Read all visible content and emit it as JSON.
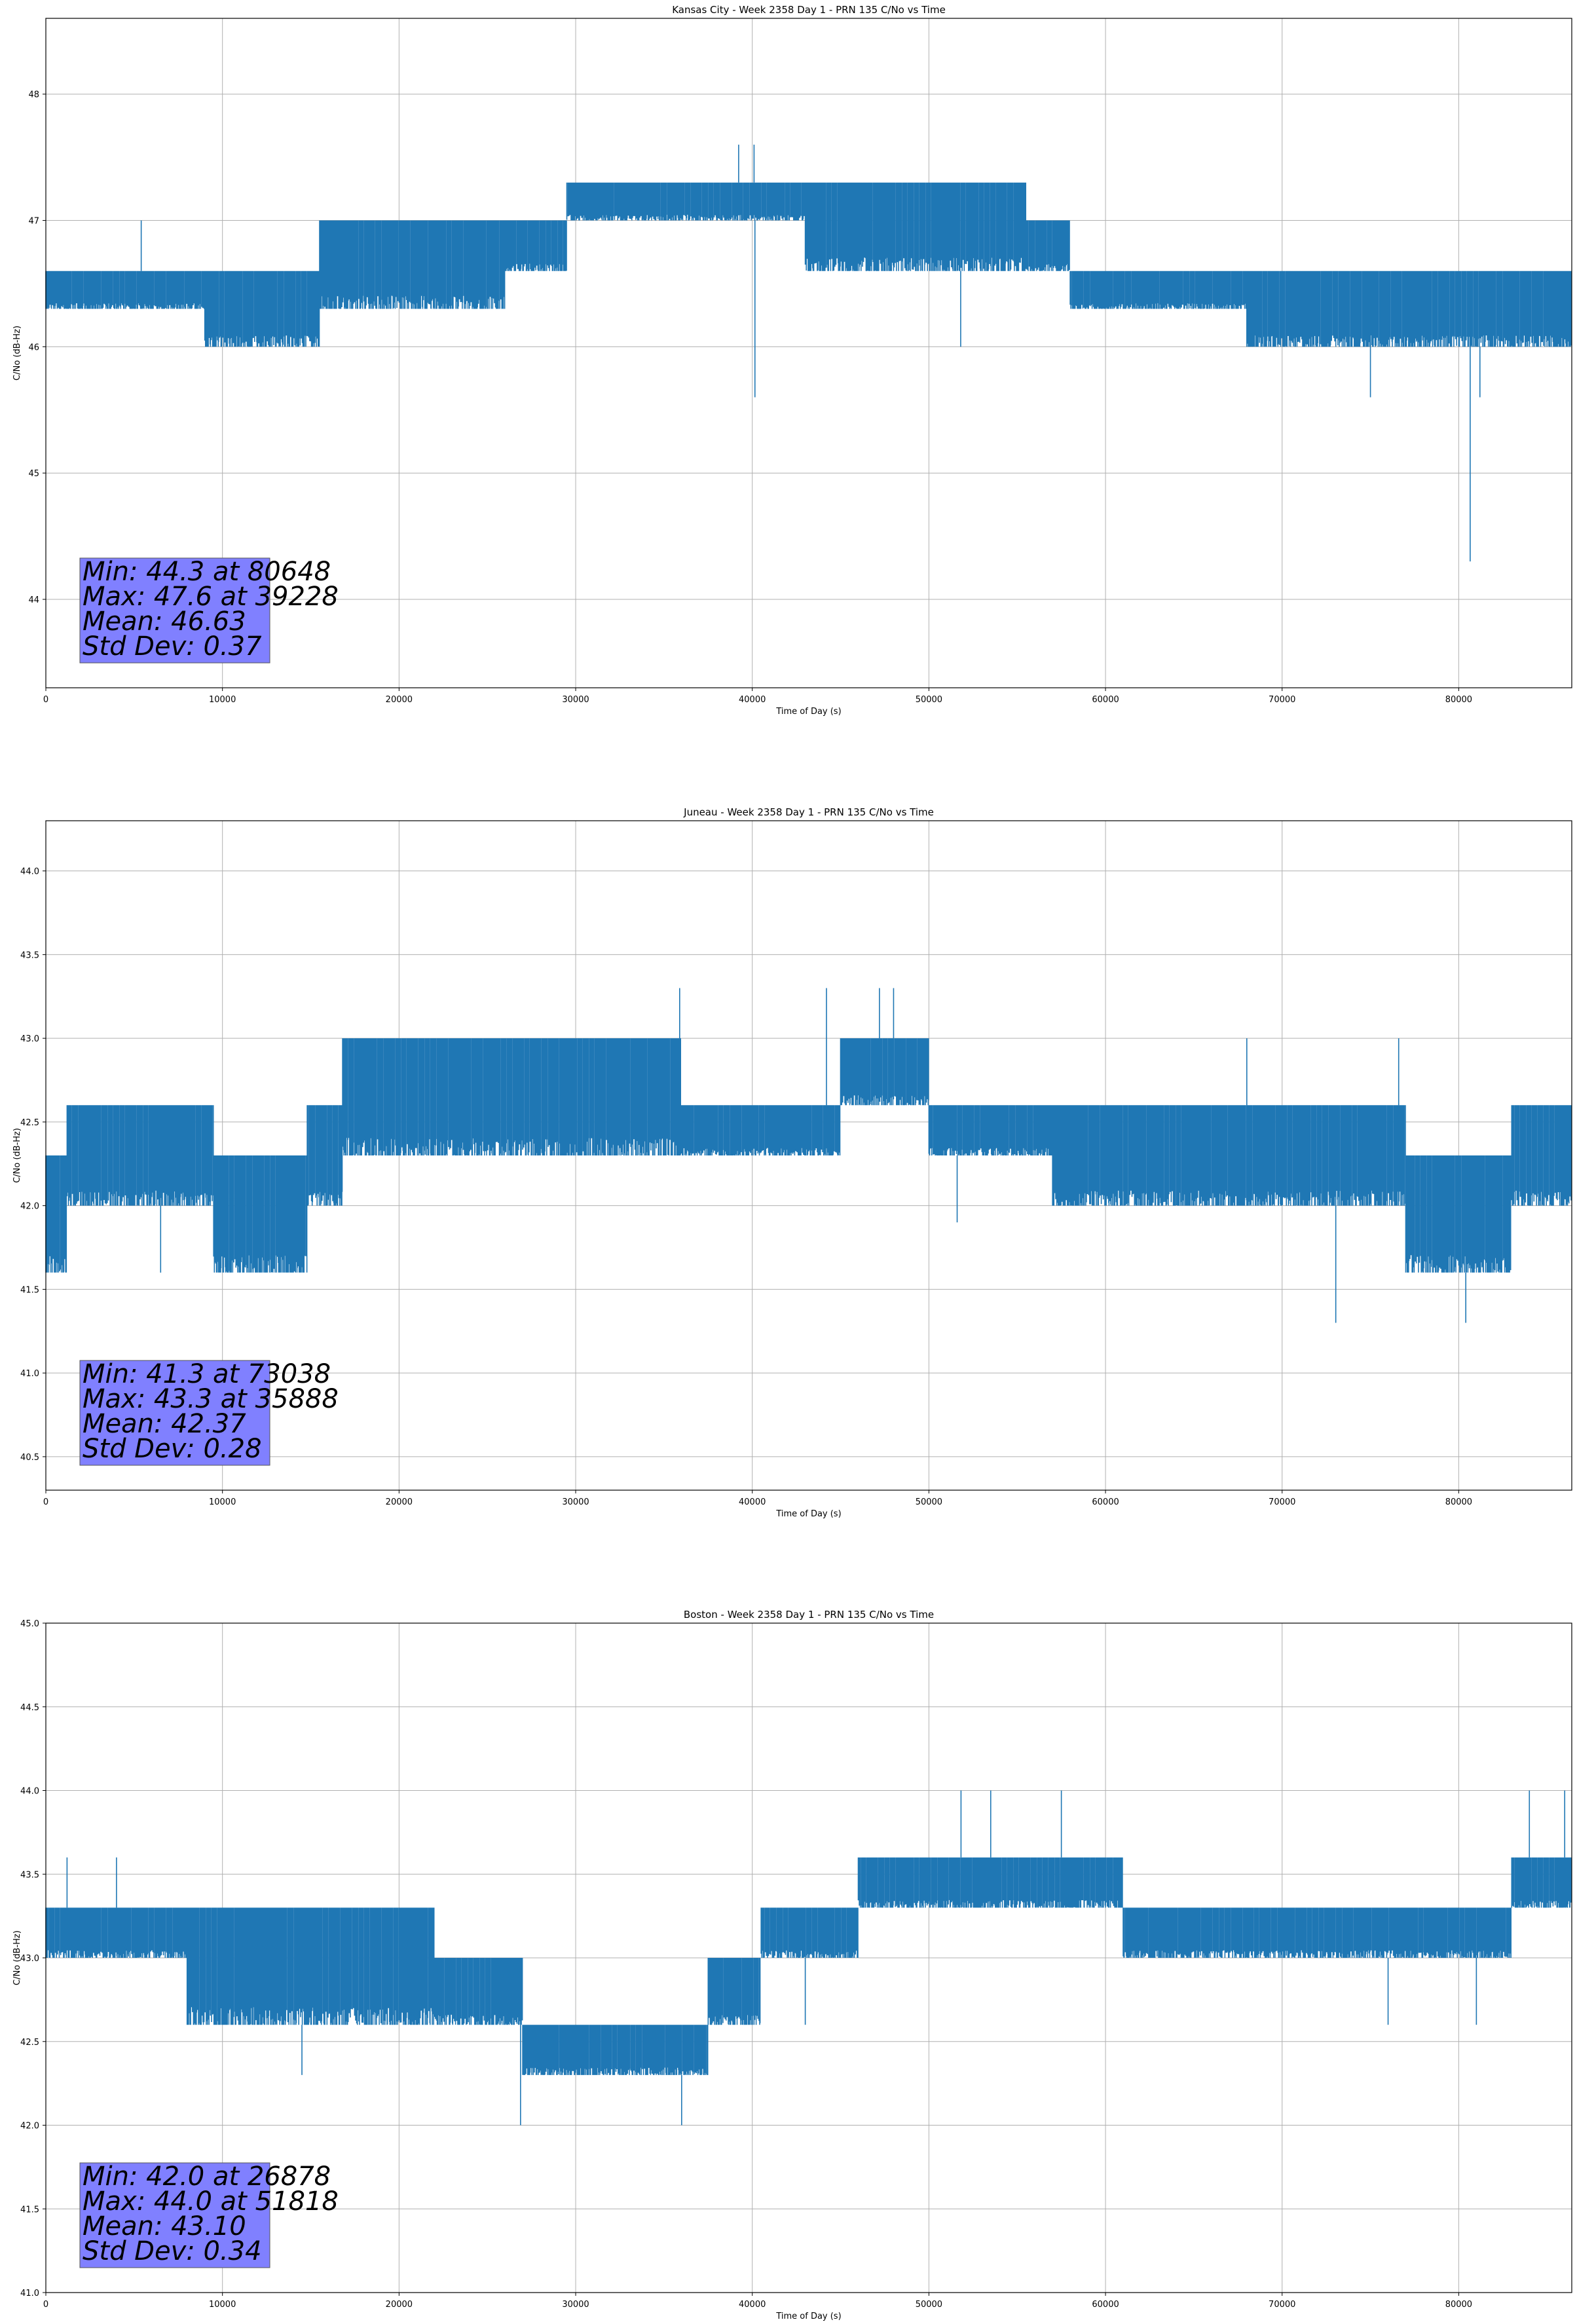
{
  "chart_data": [
    {
      "type": "line",
      "title": "Kansas City - Week 2358 Day 1 - PRN 135 C/No vs Time",
      "xlabel": "Time of Day (s)",
      "ylabel": "C/No (dB-Hz)",
      "xlim": [
        0,
        86400
      ],
      "ylim": [
        43.3,
        48.6
      ],
      "xticks": [
        0,
        10000,
        20000,
        30000,
        40000,
        50000,
        60000,
        70000,
        80000
      ],
      "yticks": [
        44,
        45,
        46,
        47,
        48
      ],
      "ytick_labels": [
        "44",
        "45",
        "46",
        "47",
        "48"
      ],
      "grid": true,
      "color": "#1f77b4",
      "segments": [
        {
          "x0": 0,
          "x1": 9000,
          "lo": 46.3,
          "hi": 46.6
        },
        {
          "x0": 9000,
          "x1": 15500,
          "lo": 46.0,
          "hi": 46.6
        },
        {
          "x0": 15500,
          "x1": 26000,
          "lo": 46.3,
          "hi": 47.0
        },
        {
          "x0": 26000,
          "x1": 29500,
          "lo": 46.6,
          "hi": 47.0
        },
        {
          "x0": 29500,
          "x1": 43000,
          "lo": 47.0,
          "hi": 47.3
        },
        {
          "x0": 43000,
          "x1": 55500,
          "lo": 46.6,
          "hi": 47.3
        },
        {
          "x0": 55500,
          "x1": 58000,
          "lo": 46.6,
          "hi": 47.0
        },
        {
          "x0": 58000,
          "x1": 68000,
          "lo": 46.3,
          "hi": 46.6
        },
        {
          "x0": 68000,
          "x1": 86400,
          "lo": 46.0,
          "hi": 46.6
        }
      ],
      "spikes": [
        {
          "x": 5400,
          "y": 47.0
        },
        {
          "x": 39228,
          "y": 47.6
        },
        {
          "x": 40100,
          "y": 47.6
        },
        {
          "x": 40150,
          "y": 45.6
        },
        {
          "x": 51800,
          "y": 46.0
        },
        {
          "x": 75000,
          "y": 45.6
        },
        {
          "x": 80648,
          "y": 44.3
        },
        {
          "x": 81200,
          "y": 45.6
        }
      ],
      "stats": [
        "Min: 44.3 at 80648",
        "Max: 47.6 at 39228",
        "Mean: 46.63",
        "Std Dev: 0.37"
      ]
    },
    {
      "type": "line",
      "title": "Juneau - Week 2358 Day 1 - PRN 135 C/No vs Time",
      "xlabel": "Time of Day (s)",
      "ylabel": "C/No (dB-Hz)",
      "xlim": [
        0,
        86400
      ],
      "ylim": [
        40.3,
        44.3
      ],
      "xticks": [
        0,
        10000,
        20000,
        30000,
        40000,
        50000,
        60000,
        70000,
        80000
      ],
      "yticks": [
        40.5,
        41.0,
        41.5,
        42.0,
        42.5,
        43.0,
        43.5,
        44.0
      ],
      "ytick_labels": [
        "40.5",
        "41.0",
        "41.5",
        "42.0",
        "42.5",
        "43.0",
        "43.5",
        "44.0"
      ],
      "grid": true,
      "color": "#1f77b4",
      "segments": [
        {
          "x0": 0,
          "x1": 1200,
          "lo": 41.6,
          "hi": 42.3
        },
        {
          "x0": 1200,
          "x1": 9500,
          "lo": 42.0,
          "hi": 42.6
        },
        {
          "x0": 9500,
          "x1": 14800,
          "lo": 41.6,
          "hi": 42.3
        },
        {
          "x0": 14800,
          "x1": 16800,
          "lo": 42.0,
          "hi": 42.6
        },
        {
          "x0": 16800,
          "x1": 36000,
          "lo": 42.3,
          "hi": 43.0
        },
        {
          "x0": 36000,
          "x1": 45000,
          "lo": 42.3,
          "hi": 42.6
        },
        {
          "x0": 45000,
          "x1": 50000,
          "lo": 42.6,
          "hi": 43.0
        },
        {
          "x0": 50000,
          "x1": 57000,
          "lo": 42.3,
          "hi": 42.6
        },
        {
          "x0": 57000,
          "x1": 77000,
          "lo": 42.0,
          "hi": 42.6
        },
        {
          "x0": 77000,
          "x1": 83000,
          "lo": 41.6,
          "hi": 42.3
        },
        {
          "x0": 83000,
          "x1": 86400,
          "lo": 42.0,
          "hi": 42.6
        }
      ],
      "spikes": [
        {
          "x": 6500,
          "y": 41.6
        },
        {
          "x": 10000,
          "y": 41.6
        },
        {
          "x": 35888,
          "y": 43.3
        },
        {
          "x": 44200,
          "y": 43.3
        },
        {
          "x": 47200,
          "y": 43.3
        },
        {
          "x": 48000,
          "y": 43.3
        },
        {
          "x": 51600,
          "y": 41.9
        },
        {
          "x": 68000,
          "y": 43.0
        },
        {
          "x": 73038,
          "y": 41.3
        },
        {
          "x": 76600,
          "y": 43.0
        },
        {
          "x": 80400,
          "y": 41.3
        }
      ],
      "stats": [
        "Min: 41.3 at 73038",
        "Max: 43.3 at 35888",
        "Mean: 42.37",
        "Std Dev: 0.28"
      ]
    },
    {
      "type": "line",
      "title": "Boston - Week 2358 Day 1 - PRN 135 C/No vs Time",
      "xlabel": "Time of Day (s)",
      "ylabel": "C/No (dB-Hz)",
      "xlim": [
        0,
        86400
      ],
      "ylim": [
        41.0,
        45.0
      ],
      "xticks": [
        0,
        10000,
        20000,
        30000,
        40000,
        50000,
        60000,
        70000,
        80000
      ],
      "yticks": [
        41.0,
        41.5,
        42.0,
        42.5,
        43.0,
        43.5,
        44.0,
        44.5,
        45.0
      ],
      "ytick_labels": [
        "41.0",
        "41.5",
        "42.0",
        "42.5",
        "43.0",
        "43.5",
        "44.0",
        "44.5",
        "45.0"
      ],
      "grid": true,
      "color": "#1f77b4",
      "segments": [
        {
          "x0": 0,
          "x1": 8000,
          "lo": 43.0,
          "hi": 43.3
        },
        {
          "x0": 8000,
          "x1": 22000,
          "lo": 42.6,
          "hi": 43.3
        },
        {
          "x0": 22000,
          "x1": 27000,
          "lo": 42.6,
          "hi": 43.0
        },
        {
          "x0": 27000,
          "x1": 37500,
          "lo": 42.3,
          "hi": 42.6
        },
        {
          "x0": 37500,
          "x1": 40500,
          "lo": 42.6,
          "hi": 43.0
        },
        {
          "x0": 40500,
          "x1": 46000,
          "lo": 43.0,
          "hi": 43.3
        },
        {
          "x0": 46000,
          "x1": 61000,
          "lo": 43.3,
          "hi": 43.6
        },
        {
          "x0": 61000,
          "x1": 83000,
          "lo": 43.0,
          "hi": 43.3
        },
        {
          "x0": 83000,
          "x1": 86400,
          "lo": 43.3,
          "hi": 43.6
        }
      ],
      "spikes": [
        {
          "x": 1200,
          "y": 43.6
        },
        {
          "x": 4000,
          "y": 43.6
        },
        {
          "x": 14500,
          "y": 42.3
        },
        {
          "x": 26878,
          "y": 42.0
        },
        {
          "x": 36000,
          "y": 42.0
        },
        {
          "x": 43000,
          "y": 42.6
        },
        {
          "x": 51818,
          "y": 44.0
        },
        {
          "x": 53500,
          "y": 44.0
        },
        {
          "x": 57500,
          "y": 44.0
        },
        {
          "x": 76000,
          "y": 42.6
        },
        {
          "x": 81000,
          "y": 42.6
        },
        {
          "x": 84000,
          "y": 44.0
        },
        {
          "x": 86000,
          "y": 44.0
        }
      ],
      "stats": [
        "Min: 42.0 at 26878",
        "Max: 44.0 at 51818",
        "Mean: 43.10",
        "Std Dev: 0.34"
      ]
    }
  ]
}
